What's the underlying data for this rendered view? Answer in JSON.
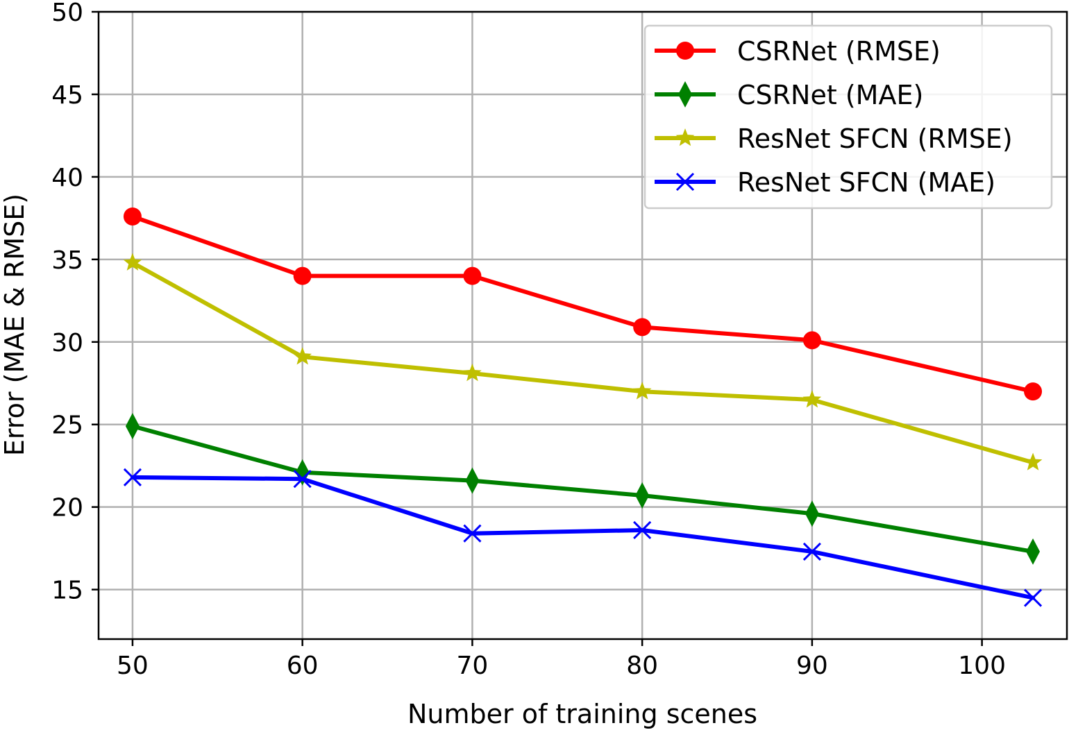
{
  "chart_data": {
    "type": "line",
    "title": "",
    "xlabel": "Number of training scenes",
    "ylabel": "Error (MAE & RMSE)",
    "x": [
      50,
      60,
      70,
      80,
      90,
      103
    ],
    "xlim": [
      48,
      105
    ],
    "ylim": [
      12,
      50
    ],
    "xticks": [
      50,
      60,
      70,
      80,
      90,
      100
    ],
    "yticks": [
      15,
      20,
      25,
      30,
      35,
      40,
      45,
      50
    ],
    "xtick_labels": [
      "50",
      "60",
      "70",
      "80",
      "90",
      "100"
    ],
    "ytick_labels": [
      "15",
      "20",
      "25",
      "30",
      "35",
      "40",
      "45",
      "50"
    ],
    "grid": true,
    "legend_position": "top-right",
    "series": [
      {
        "name": "CSRNet (RMSE)",
        "color": "#ff0000",
        "marker": "circle",
        "values": [
          37.6,
          34.0,
          34.0,
          30.9,
          30.1,
          27.0
        ]
      },
      {
        "name": "CSRNet (MAE)",
        "color": "#008000",
        "marker": "diamond",
        "values": [
          24.9,
          22.1,
          21.6,
          20.7,
          19.6,
          17.3
        ]
      },
      {
        "name": "ResNet SFCN (RMSE)",
        "color": "#bfbf00",
        "marker": "star",
        "values": [
          34.8,
          29.1,
          28.1,
          27.0,
          26.5,
          22.7
        ]
      },
      {
        "name": "ResNet SFCN (MAE)",
        "color": "#0000ff",
        "marker": "x",
        "values": [
          21.8,
          21.7,
          18.4,
          18.6,
          17.3,
          14.5
        ]
      }
    ]
  }
}
